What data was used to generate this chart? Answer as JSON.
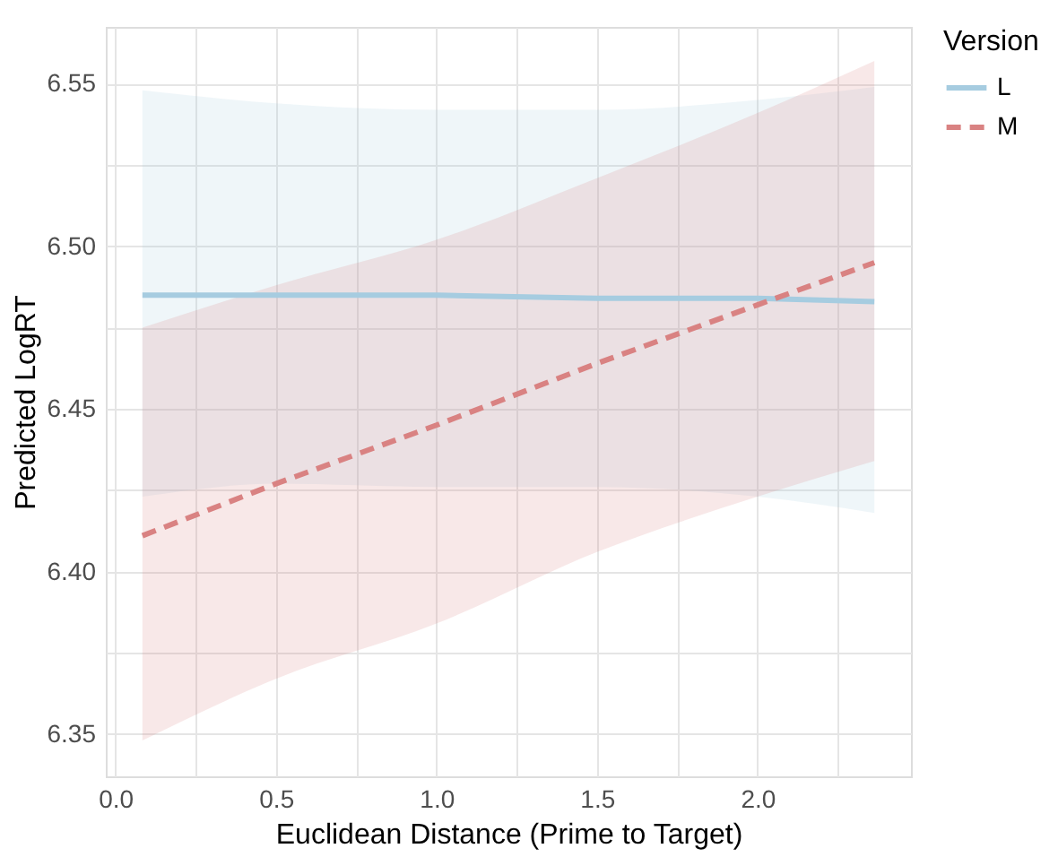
{
  "chart_data": {
    "type": "line",
    "xlabel": "Euclidean Distance (Prime to Target)",
    "ylabel": "Predicted LogRT",
    "legend_title": "Version",
    "xlim": [
      -0.03,
      2.478
    ],
    "ylim": [
      6.337,
      6.5675
    ],
    "xticks": [
      {
        "value": 0,
        "label": "0.0"
      },
      {
        "value": 0.25,
        "label": null
      },
      {
        "value": 0.5,
        "label": "0.5"
      },
      {
        "value": 0.75,
        "label": null
      },
      {
        "value": 1,
        "label": "1.0"
      },
      {
        "value": 1.25,
        "label": null
      },
      {
        "value": 1.5,
        "label": "1.5"
      },
      {
        "value": 1.75,
        "label": null
      },
      {
        "value": 2,
        "label": "2.0"
      },
      {
        "value": 2.25,
        "label": null
      }
    ],
    "yticks": [
      {
        "value": 6.35,
        "label": "6.35"
      },
      {
        "value": 6.375,
        "label": null
      },
      {
        "value": 6.4,
        "label": "6.40"
      },
      {
        "value": 6.425,
        "label": null
      },
      {
        "value": 6.45,
        "label": "6.45"
      },
      {
        "value": 6.475,
        "label": null
      },
      {
        "value": 6.5,
        "label": "6.50"
      },
      {
        "value": 6.525,
        "label": null
      },
      {
        "value": 6.55,
        "label": "6.55"
      }
    ],
    "grid": true,
    "legend": "right",
    "marker": "none",
    "series": [
      {
        "name": "L",
        "color": "#a6cce0",
        "line_style": "solid",
        "x": [
          0.084,
          0.5,
          1.0,
          1.5,
          2.0,
          2.364
        ],
        "values": [
          6.485,
          6.485,
          6.485,
          6.484,
          6.484,
          6.483
        ],
        "lower": [
          6.423,
          6.427,
          6.426,
          6.426,
          6.423,
          6.418
        ],
        "upper": [
          6.548,
          6.544,
          6.542,
          6.542,
          6.545,
          6.549
        ]
      },
      {
        "name": "M",
        "color": "#d98282",
        "line_style": "dashed",
        "x": [
          0.084,
          0.5,
          1.0,
          1.5,
          2.0,
          2.364
        ],
        "values": [
          6.411,
          6.427,
          6.445,
          6.464,
          6.482,
          6.495
        ],
        "lower": [
          6.348,
          6.367,
          6.384,
          6.406,
          6.423,
          6.434
        ],
        "upper": [
          6.475,
          6.488,
          6.502,
          6.521,
          6.541,
          6.557
        ]
      }
    ]
  }
}
